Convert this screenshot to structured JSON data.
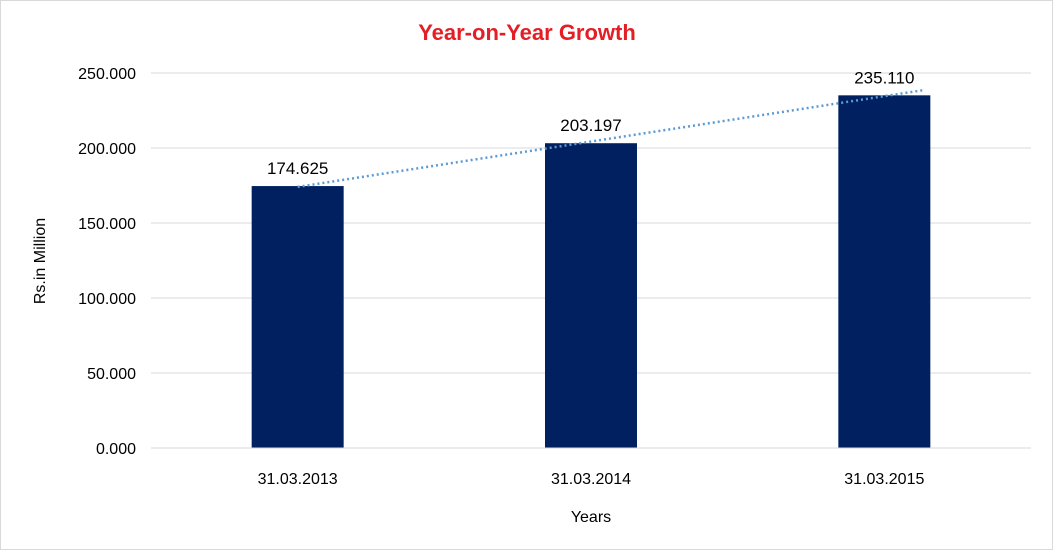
{
  "chart_data": {
    "type": "bar",
    "title": "Year-on-Year Growth",
    "xlabel": "Years",
    "ylabel": "Rs.in Million",
    "categories": [
      "31.03.2013",
      "31.03.2014",
      "31.03.2015"
    ],
    "values": [
      174.625,
      203.197,
      235.11
    ],
    "value_labels": [
      "174.625",
      "203.197",
      "235.110"
    ],
    "yticks": [
      "0.000",
      "50.000",
      "100.000",
      "150.000",
      "200.000",
      "250.000"
    ],
    "ylim": [
      0,
      250
    ],
    "grid": true,
    "legend": "none",
    "trendline": "linear",
    "colors": {
      "bar": "#002060",
      "trendline": "#5B9BD5",
      "title": "#E31E24",
      "grid": "#d9d9d9"
    }
  }
}
